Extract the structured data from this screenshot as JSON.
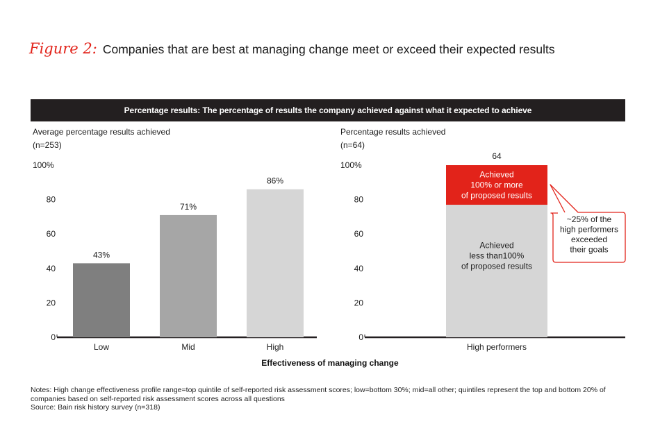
{
  "figure": {
    "label": "Figure 2:",
    "title": "Companies that are best at managing change meet or exceed their expected results"
  },
  "banner": "Percentage results: The percentage of results the company achieved against what it expected to achieve",
  "x_axis_title": "Effectiveness of managing change",
  "notes": "Notes: High change effectiveness profile range=top quintile of self-reported risk assessment scores; low=bottom 30%; mid=all other; quintiles represent the top and bottom 20% of companies based on self-reported risk assessment scores across all questions",
  "source": "Source: Bain risk history survey (n=318)",
  "colors": {
    "accent": "#e2231a",
    "dark": "#231f20",
    "bar_low": "#7f7f7f",
    "bar_mid": "#a6a6a6",
    "bar_high": "#d6d6d6"
  },
  "chart_data": [
    {
      "type": "bar",
      "title": "Average percentage results achieved",
      "subtitle": "(n=253)",
      "ylim": [
        0,
        100
      ],
      "yticks": [
        "0",
        "20",
        "40",
        "60",
        "80",
        "100%"
      ],
      "categories": [
        "Low",
        "Mid",
        "High"
      ],
      "values": [
        43,
        71,
        86
      ],
      "data_labels": [
        "43%",
        "71%",
        "86%"
      ],
      "bar_colors": [
        "#7f7f7f",
        "#a6a6a6",
        "#d6d6d6"
      ]
    },
    {
      "type": "bar",
      "stacked": true,
      "title": "Percentage results achieved",
      "subtitle": "(n=64)",
      "ylim": [
        0,
        100
      ],
      "yticks": [
        "0",
        "20",
        "40",
        "60",
        "80",
        "100%"
      ],
      "categories": [
        "High performers"
      ],
      "total_label": "64",
      "series": [
        {
          "name": "Achieved less than100% of proposed results",
          "lines": [
            "Achieved",
            "less than100%",
            "of proposed results"
          ],
          "values": [
            77
          ],
          "color": "#d6d6d6"
        },
        {
          "name": "Achieved 100% or more of proposed results",
          "lines": [
            "Achieved",
            "100% or more",
            "of proposed results"
          ],
          "values": [
            23
          ],
          "color": "#e2231a"
        }
      ],
      "callout": [
        "~25% of the",
        "high performers",
        "exceeded",
        "their goals"
      ]
    }
  ]
}
